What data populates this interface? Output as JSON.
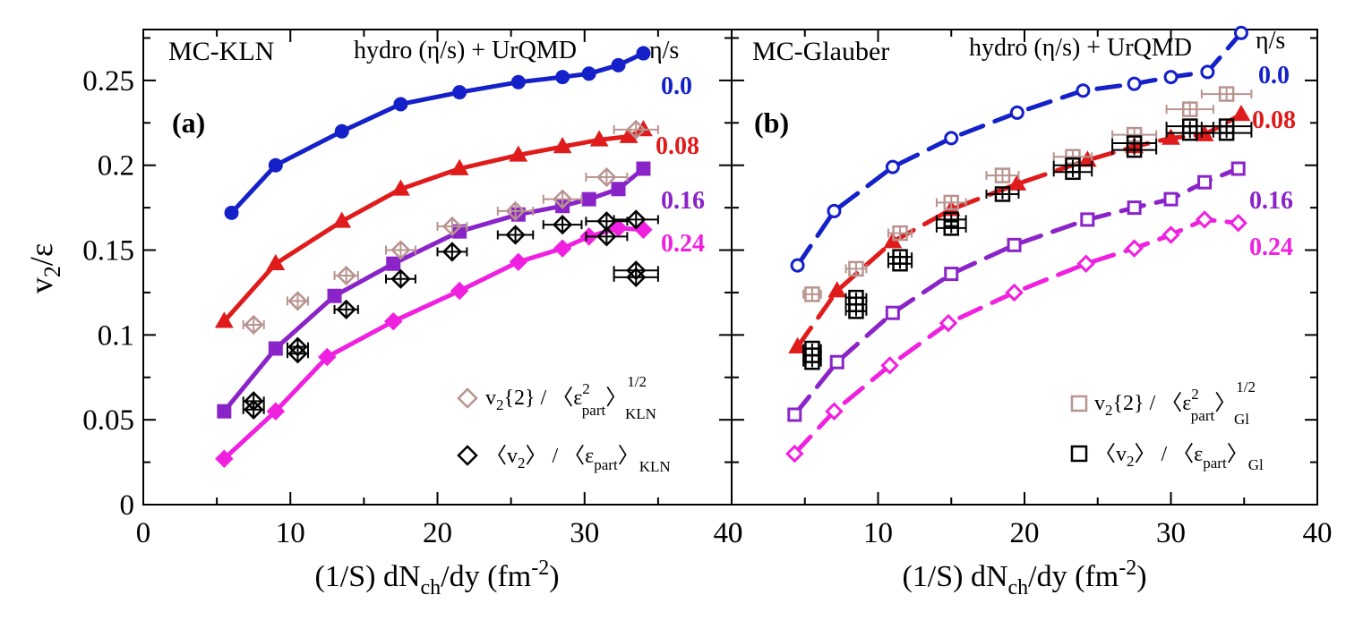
{
  "figure": {
    "ylabel_main": "v",
    "ylabel_sub": "2",
    "ylabel_tail": "/ε",
    "xlabel_pre": "(1/S) dN",
    "xlabel_sub": "ch",
    "xlabel_mid": "/dy (fm",
    "xlabel_sup": "-2",
    "xlabel_post": ")"
  },
  "colors": {
    "eta_0.0": "#1420c8",
    "eta_0.08": "#e01b1b",
    "eta_0.16": "#8a24c8",
    "eta_0.24": "#f020e0",
    "v2_2": "#b89490",
    "v2_mean": "#000000"
  },
  "chart_data": [
    {
      "type": "line",
      "id": "a",
      "panel_label": "(a)",
      "model": "MC-KLN",
      "title": "hydro (η/s) + UrQMD",
      "legend_title": "η/s",
      "xlim": [
        0,
        40
      ],
      "ylim": [
        0,
        0.28
      ],
      "xticks": [
        "0",
        "10",
        "20",
        "30",
        "40"
      ],
      "yticks": [
        "0",
        "0.05",
        "0.1",
        "0.15",
        "0.2",
        "0.25"
      ],
      "line_style": "solid",
      "series": [
        {
          "eta": "0.0",
          "marker": "circle",
          "filled": true,
          "x": [
            6,
            9,
            13.5,
            17.5,
            21.5,
            25.5,
            28.5,
            30.3,
            32.3,
            34
          ],
          "y": [
            0.172,
            0.2,
            0.22,
            0.236,
            0.243,
            0.249,
            0.252,
            0.254,
            0.259,
            0.266
          ]
        },
        {
          "eta": "0.08",
          "marker": "triangle",
          "filled": true,
          "x": [
            5.5,
            9,
            13.5,
            17.5,
            21.5,
            25.5,
            28.5,
            31,
            33,
            34
          ],
          "y": [
            0.108,
            0.142,
            0.167,
            0.186,
            0.198,
            0.206,
            0.211,
            0.215,
            0.217,
            0.221
          ]
        },
        {
          "eta": "0.16",
          "marker": "square",
          "filled": true,
          "x": [
            5.5,
            9,
            13,
            17,
            21.5,
            25.5,
            28.5,
            30.3,
            32.3,
            34
          ],
          "y": [
            0.055,
            0.092,
            0.123,
            0.142,
            0.161,
            0.171,
            0.176,
            0.18,
            0.186,
            0.198
          ]
        },
        {
          "eta": "0.24",
          "marker": "diamond",
          "filled": true,
          "x": [
            5.5,
            9,
            12.5,
            17,
            21.5,
            25.5,
            28.5,
            30.3,
            32.3,
            34
          ],
          "y": [
            0.027,
            0.055,
            0.087,
            0.108,
            0.126,
            0.143,
            0.151,
            0.158,
            0.163,
            0.162
          ]
        }
      ],
      "points": [
        {
          "name": "v2{2} / <eps_part^2>^1/2 KLN",
          "marker": "diamond",
          "colorKey": "v2_2",
          "x": [
            7.5,
            10.5,
            13.8,
            17.5,
            21,
            25.3,
            28.5,
            31.5,
            33.5
          ],
          "y": [
            0.106,
            0.12,
            0.135,
            0.15,
            0.164,
            0.173,
            0.18,
            0.193,
            0.221
          ],
          "xerr": [
            0.7,
            0.7,
            0.8,
            1,
            1,
            1.2,
            1.3,
            1.4,
            1.5
          ],
          "yerr": [
            0.004,
            0.004,
            0.004,
            0.004,
            0.004,
            0.004,
            0.004,
            0.004,
            0.004
          ]
        },
        {
          "name": "<v2> / <eps_part> KLN",
          "marker": "diamond",
          "colorKey": "v2_mean",
          "x": [
            7.5,
            7.5,
            10.5,
            10.5,
            13.8,
            17.5,
            21,
            25.3,
            28.5,
            31.5,
            31.5,
            33.5,
            33.5,
            33.5
          ],
          "y": [
            0.061,
            0.056,
            0.093,
            0.089,
            0.115,
            0.133,
            0.149,
            0.159,
            0.165,
            0.158,
            0.167,
            0.134,
            0.138,
            0.168
          ],
          "xerr": [
            0.7,
            0.7,
            0.7,
            0.7,
            0.8,
            1,
            1,
            1.2,
            1.3,
            1.4,
            1.4,
            1.5,
            1.5,
            1.5
          ],
          "yerr": [
            0.005,
            0.005,
            0.005,
            0.005,
            0.005,
            0.005,
            0.005,
            0.005,
            0.005,
            0.005,
            0.005,
            0.005,
            0.005,
            0.005
          ]
        }
      ],
      "legend": {
        "entry1": {
          "pre": "v",
          "sub": "2",
          "mid": "{2} / 〈ε",
          "sup": "2",
          "sub2": "part",
          "close": "〉",
          "sup2": "1/2",
          "sub3": "KLN"
        },
        "entry2": {
          "pre": "〈v",
          "sub": "2",
          "mid": "〉 / 〈ε",
          "sub2": "part",
          "close": "〉",
          "sub3": "KLN"
        }
      }
    },
    {
      "type": "line",
      "id": "b",
      "panel_label": "(b)",
      "model": "MC-Glauber",
      "title": "hydro (η/s) + UrQMD",
      "legend_title": "η/s",
      "xlim": [
        0,
        40
      ],
      "ylim": [
        0,
        0.28
      ],
      "xticks": [
        "0",
        "10",
        "20",
        "30",
        "40"
      ],
      "yticks": [],
      "line_style": "dashed",
      "series": [
        {
          "eta": "0.0",
          "marker": "circle",
          "filled": false,
          "x": [
            4.5,
            7,
            11,
            15,
            19.5,
            24,
            27.5,
            30,
            32.5,
            34.8
          ],
          "y": [
            0.141,
            0.173,
            0.199,
            0.216,
            0.231,
            0.244,
            0.248,
            0.252,
            0.255,
            0.278
          ]
        },
        {
          "eta": "0.08",
          "marker": "triangle",
          "filled": true,
          "x": [
            4.5,
            7.2,
            11,
            15,
            19.5,
            24.3,
            27.5,
            30,
            32.3,
            34.8
          ],
          "y": [
            0.093,
            0.126,
            0.155,
            0.174,
            0.189,
            0.203,
            0.211,
            0.216,
            0.218,
            0.23
          ]
        },
        {
          "eta": "0.16",
          "marker": "square",
          "filled": false,
          "x": [
            4.3,
            7.2,
            11,
            15,
            19.3,
            24.3,
            27.5,
            30,
            32.3,
            34.6
          ],
          "y": [
            0.053,
            0.084,
            0.113,
            0.136,
            0.153,
            0.168,
            0.175,
            0.18,
            0.19,
            0.198
          ]
        },
        {
          "eta": "0.24",
          "marker": "diamond",
          "filled": false,
          "x": [
            4.3,
            7,
            10.8,
            14.8,
            19.3,
            24.2,
            27.5,
            30,
            32.3,
            34.6
          ],
          "y": [
            0.03,
            0.055,
            0.082,
            0.107,
            0.125,
            0.142,
            0.151,
            0.159,
            0.168,
            0.166
          ]
        }
      ],
      "points": [
        {
          "name": "v2{2} / <eps_part^2>^1/2 Gl",
          "marker": "square",
          "colorKey": "v2_2",
          "x": [
            5.5,
            8.5,
            11.5,
            15,
            18.5,
            23.3,
            27.5,
            31.3,
            33.8
          ],
          "y": [
            0.124,
            0.139,
            0.16,
            0.178,
            0.194,
            0.205,
            0.218,
            0.233,
            0.242
          ],
          "xerr": [
            0.6,
            0.7,
            0.8,
            1,
            1.1,
            1.3,
            1.5,
            1.6,
            1.7
          ],
          "yerr": [
            0.004,
            0.004,
            0.004,
            0.004,
            0.004,
            0.004,
            0.004,
            0.004,
            0.004
          ]
        },
        {
          "name": "<v2> / <eps_part> Gl",
          "marker": "square",
          "colorKey": "v2_mean",
          "x": [
            5.5,
            5.5,
            5.5,
            8.5,
            8.5,
            8.5,
            11.5,
            11.5,
            15,
            15,
            18.5,
            23.3,
            23.3,
            27.5,
            27.5,
            31.3,
            31.3,
            33.8,
            33.8
          ],
          "y": [
            0.092,
            0.088,
            0.084,
            0.122,
            0.118,
            0.114,
            0.146,
            0.142,
            0.168,
            0.163,
            0.183,
            0.2,
            0.196,
            0.213,
            0.209,
            0.223,
            0.219,
            0.223,
            0.219
          ],
          "xerr": [
            0.6,
            0.6,
            0.6,
            0.7,
            0.7,
            0.7,
            0.8,
            0.8,
            1,
            1,
            1.1,
            1.3,
            1.3,
            1.5,
            1.5,
            1.6,
            1.6,
            1.7,
            1.7
          ],
          "yerr": [
            0.003,
            0.003,
            0.003,
            0.003,
            0.003,
            0.003,
            0.003,
            0.003,
            0.003,
            0.003,
            0.003,
            0.003,
            0.003,
            0.003,
            0.003,
            0.003,
            0.003,
            0.003,
            0.003
          ]
        }
      ],
      "legend": {
        "entry1": {
          "pre": "v",
          "sub": "2",
          "mid": "{2} / 〈ε",
          "sup": "2",
          "sub2": "part",
          "close": "〉",
          "sup2": "1/2",
          "sub3": "Gl"
        },
        "entry2": {
          "pre": "〈v",
          "sub": "2",
          "mid": "〉 / 〈ε",
          "sub2": "part",
          "close": "〉",
          "sub3": "Gl"
        }
      }
    }
  ]
}
